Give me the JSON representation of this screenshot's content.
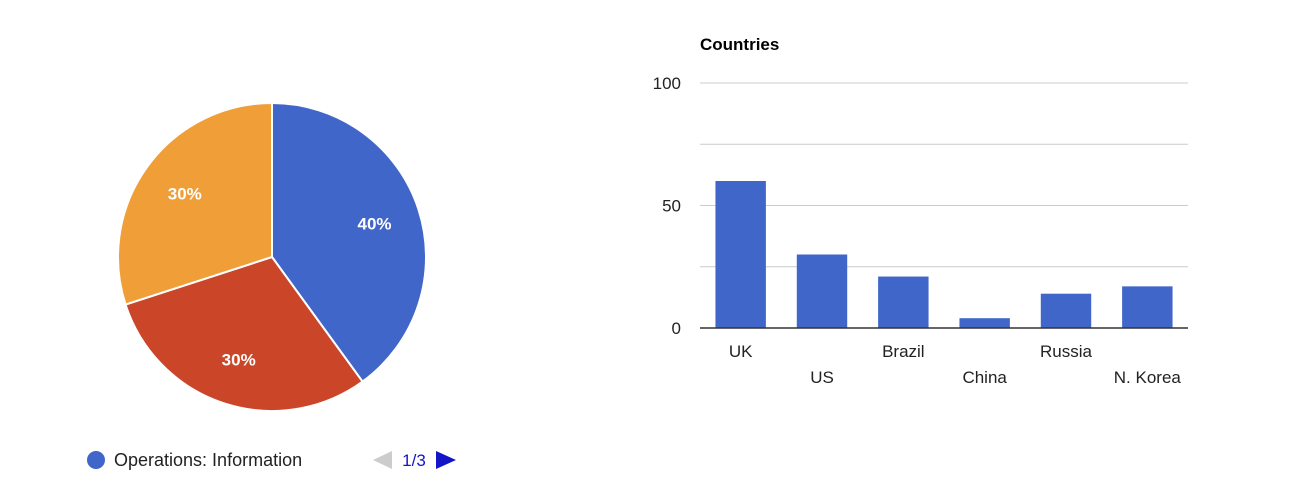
{
  "colors": {
    "blue": "#4166c9",
    "red": "#cb4628",
    "orange": "#f09f38",
    "gridline": "#cccccc",
    "baseline": "#333333",
    "text": "#222222",
    "pager_active": "#1414c8",
    "pager_disabled": "#cccccc"
  },
  "legend": {
    "label": "Operations: Information",
    "marker_icon": "circle-marker-icon"
  },
  "pager": {
    "text": "1/3",
    "prev_icon": "triangle-left-icon",
    "next_icon": "triangle-right-icon",
    "prev_enabled": false,
    "next_enabled": true
  },
  "chart_data": [
    {
      "type": "pie",
      "slices": [
        {
          "value": 40,
          "label": "40%",
          "color": "#4166c9"
        },
        {
          "value": 30,
          "label": "30%",
          "color": "#cb4628"
        },
        {
          "value": 30,
          "label": "30%",
          "color": "#f09f38"
        }
      ],
      "legend_position": "bottom",
      "legend_entries": [
        "Operations: Information"
      ]
    },
    {
      "type": "bar",
      "title": "Countries",
      "categories": [
        "UK",
        "US",
        "Brazil",
        "China",
        "Russia",
        "N. Korea"
      ],
      "values": [
        60,
        30,
        21,
        4,
        14,
        17
      ],
      "ylim": [
        0,
        100
      ],
      "yticks": [
        0,
        50,
        100
      ],
      "grid": true,
      "bar_color": "#4166c9",
      "xlabel": "",
      "ylabel": ""
    }
  ]
}
